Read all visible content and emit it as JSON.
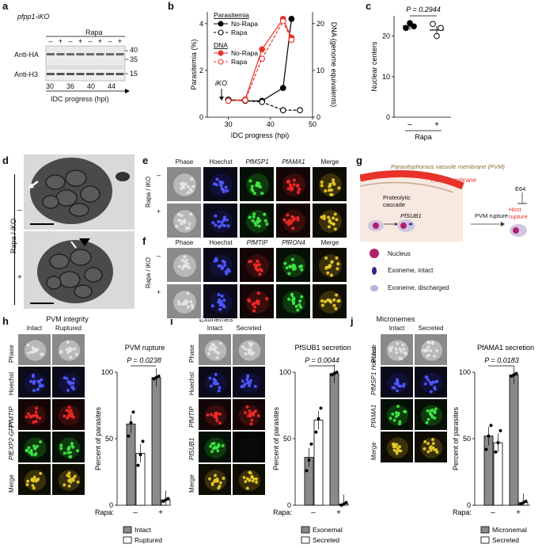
{
  "panels": {
    "a": {
      "letter": "a",
      "construct": "pfpp1-iKO",
      "rapa": "Rapa",
      "treat": [
        "–",
        "+",
        "–",
        "+",
        "–",
        "+",
        "–",
        "+"
      ],
      "row1": "Anti-HA",
      "row2": "Anti-H3",
      "mw": [
        "40",
        "35",
        "15"
      ],
      "times": [
        "30",
        "36",
        "40",
        "44"
      ],
      "xlabel": "IDC progress (hpi)"
    },
    "b": {
      "letter": "b",
      "legend_parasitemia": "Parasitemia",
      "legend_dna": "DNA",
      "no_rapa": "No-Rapa",
      "rapa": "Rapa",
      "annotation": "iKO"
    },
    "c": {
      "letter": "c",
      "pval": "P = 0.2944",
      "treat": [
        "–",
        "+"
      ],
      "rapa": "Rapa"
    },
    "d": {
      "letter": "d",
      "side": "Rapa / iKO",
      "treat": [
        "–",
        "+"
      ]
    },
    "e": {
      "letter": "e",
      "cols": [
        "Phase",
        "Hoechst",
        "PfMSP1",
        "PfAMA1",
        "Merge"
      ],
      "side": "Rapa / iKO",
      "treat": [
        "–",
        "+"
      ]
    },
    "f": {
      "letter": "f",
      "cols": [
        "Phase",
        "Hoechst",
        "PfMTIP",
        "PfRON4",
        "Merge"
      ],
      "side": "Rapa / iKO",
      "treat": [
        "–",
        "+"
      ]
    },
    "g": {
      "letter": "g",
      "pvm": "Parasitophorous vacuole membrane (PVM)",
      "host_membrane": "Host membrane",
      "cascade": "Proteolytic cascade",
      "sub1": "PfSUB1",
      "pvm_rupture": "PVM rupture",
      "e64": "E64",
      "host_rupture": "Host rupture",
      "legend": [
        "Nucleus",
        "Exoneme, intact",
        "Exoneme, discharged"
      ]
    },
    "h": {
      "letter": "h",
      "title": "PVM integrity",
      "cols": [
        "Intact",
        "Ruptured"
      ],
      "rows": [
        "Phase",
        "Hoechst",
        "PfMTIP",
        "PfEXP2-GFP",
        "Merge"
      ]
    },
    "i": {
      "letter": "i",
      "title": "Exonemes",
      "cols": [
        "Intact",
        "Secreted"
      ],
      "rows": [
        "Phase",
        "Hoechst",
        "PfMTIP",
        "PfSUB1",
        "Merge"
      ]
    },
    "j": {
      "letter": "j",
      "title": "Micronemes",
      "cols": [
        "Intact",
        "Secreted"
      ],
      "rows": [
        "Phase",
        "PfMSP1 Hoechst",
        "PfAMA1",
        "Merge"
      ]
    }
  },
  "chart_data": [
    {
      "id": "b",
      "type": "line",
      "xlabel": "IDC progress (hpi)",
      "ylabel_left": "Parasitemia (%)",
      "ylabel_right": "DNA (genome equivalents)",
      "xlim": [
        25,
        50
      ],
      "ylim_left": [
        0,
        4.5
      ],
      "ylim_right": [
        0,
        22.5
      ],
      "xticks": [
        30,
        40,
        50
      ],
      "yticks_left": [
        0,
        2,
        4
      ],
      "yticks_right": [
        0,
        10,
        20
      ],
      "series": [
        {
          "name": "No-Rapa",
          "axis": "left",
          "color": "#000000",
          "x": [
            30,
            34,
            38,
            43,
            45
          ],
          "y": [
            0.75,
            0.7,
            0.7,
            1.25,
            4.2
          ]
        },
        {
          "name": "Rapa",
          "axis": "left",
          "color": "#000000",
          "x": [
            30,
            34,
            38,
            43,
            47
          ],
          "y": [
            0.75,
            0.7,
            0.65,
            0.3,
            0.3
          ]
        },
        {
          "name": "No-Rapa",
          "axis": "right",
          "color": "#e8322a",
          "x": [
            30,
            34,
            38,
            43,
            45
          ],
          "y": [
            3.5,
            3.8,
            14.5,
            21,
            17
          ]
        },
        {
          "name": "Rapa",
          "axis": "right",
          "color": "#e8322a",
          "x": [
            30,
            34,
            38,
            43,
            45
          ],
          "y": [
            3.5,
            3.6,
            12.5,
            20.5,
            16.5
          ]
        }
      ]
    },
    {
      "id": "c",
      "type": "scatter",
      "ylabel": "Nuclear centers",
      "ylim": [
        0,
        25
      ],
      "yticks": [
        0,
        10,
        20
      ],
      "categories": [
        "–",
        "+"
      ],
      "groups": [
        {
          "category": "–",
          "mean": 22.5,
          "points": [
            22.0,
            23.2,
            22.4
          ]
        },
        {
          "category": "+",
          "mean": 21.5,
          "points": [
            23.0,
            20.0,
            22.0
          ]
        }
      ]
    },
    {
      "id": "h",
      "type": "bar",
      "title": "PVM rupture",
      "pval": "P = 0.0238",
      "ylabel": "Percent of parasites",
      "ylim": [
        0,
        100
      ],
      "yticks": [
        0,
        50,
        100
      ],
      "categories": [
        "–",
        "+"
      ],
      "xlabel": "Rapa:",
      "series": [
        {
          "name": "Intact",
          "values": [
            61,
            96
          ],
          "points": [
            [
              52,
              62,
              70
            ],
            [
              95,
              96,
              97
            ]
          ]
        },
        {
          "name": "Ruptured",
          "values": [
            39,
            4
          ],
          "points": [
            [
              30,
              38,
              48
            ],
            [
              3,
              4,
              5
            ]
          ]
        }
      ]
    },
    {
      "id": "i",
      "type": "bar",
      "title": "PfSUB1 secretion",
      "pval": "P = 0.0044",
      "ylabel": "Percent of parasites",
      "ylim": [
        0,
        100
      ],
      "yticks": [
        0,
        50,
        100
      ],
      "categories": [
        "–",
        "+"
      ],
      "xlabel": "Rapa:",
      "series": [
        {
          "name": "Exonemal",
          "values": [
            36,
            99
          ],
          "points": [
            [
              26,
              34,
              46
            ],
            [
              98,
              99,
              100
            ]
          ]
        },
        {
          "name": "Secreted",
          "values": [
            64,
            1
          ],
          "points": [
            [
              55,
              65,
              73
            ],
            [
              0,
              1,
              2
            ]
          ]
        }
      ]
    },
    {
      "id": "j",
      "type": "bar",
      "title": "PfAMA1 secretion",
      "pval": "P = 0.0183",
      "ylabel": "Percent of parasites",
      "ylim": [
        0,
        100
      ],
      "yticks": [
        0,
        50,
        100
      ],
      "categories": [
        "–",
        "+"
      ],
      "xlabel": "Rapa:",
      "series": [
        {
          "name": "Micronemal",
          "values": [
            52,
            98
          ],
          "points": [
            [
              42,
              52,
              60
            ],
            [
              97,
              98,
              99
            ]
          ]
        },
        {
          "name": "Secreted",
          "values": [
            47,
            2
          ],
          "points": [
            [
              40,
              47,
              56
            ],
            [
              1,
              2,
              3
            ]
          ]
        }
      ]
    }
  ]
}
